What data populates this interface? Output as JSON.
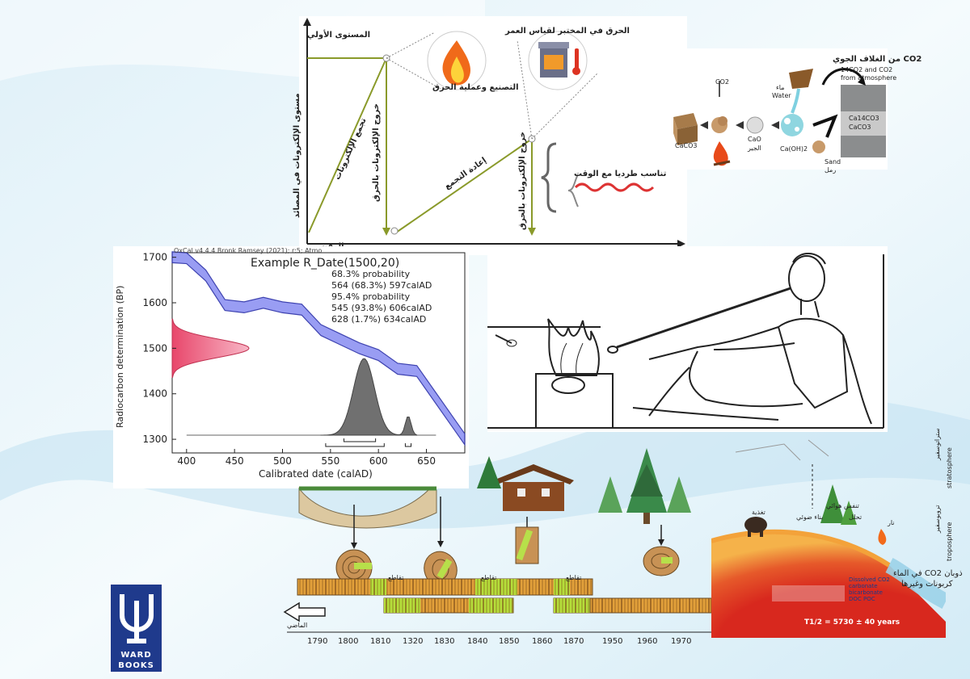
{
  "carbon_cycle": {
    "y_axis": "مستوى الإلكترونات في المصائد",
    "x_axis": "الوقت",
    "initial_level": "المستوى الأولي",
    "manufacture": "التصنيع وعملية الحرق",
    "lab_heating": "الحرق في المختبر لقياس العمر",
    "accumulation": "تجمع الإلكترونات",
    "release_heating": "خروج الإلكترونات بالحرق",
    "re_accumulation": "إعادة التجمع",
    "release_heating_2": "خروج الإلكترونات بالحرق",
    "proportional": "تناسب طرديا مع الوقت"
  },
  "lime_cycle": {
    "co2_title": "CO2 من الغلاف الجوي",
    "co2_sub_1": "14CO2 and CO2",
    "co2_sub_2": "from atmosphere",
    "co2_small": "CO2",
    "caco3": "CaCO3",
    "cao": "CaO",
    "cao_ar": "الجير",
    "water_ar": "ماء",
    "water": "Water",
    "caoh2": "Ca(OH)2",
    "sand": "Sand",
    "sand_ar": "رمل",
    "wall_1": "Ca14CO3",
    "wall_2": "CaCO3"
  },
  "oxcal": {
    "header": "OxCal v4.4.4 Bronk Ramsey (2021); r:5; Atmo",
    "title": "Example R_Date(1500,20)",
    "lines": [
      "68.3% probability",
      "564 (68.3%) 597calAD",
      "95.4% probability",
      "545 (93.8%) 606calAD",
      "628 (1.7%) 634calAD"
    ],
    "ylabel": "Radiocarbon determination (BP)",
    "xlabel": "Calibrated date (calAD)",
    "yticks": [
      "1700",
      "1600",
      "1500",
      "1400",
      "1300"
    ],
    "xticks": [
      "400",
      "450",
      "500",
      "550",
      "600",
      "650"
    ]
  },
  "chart_data": {
    "type": "area",
    "title": "Example R_Date(1500,20)",
    "xlabel": "Calibrated date (calAD)",
    "ylabel": "Radiocarbon determination (BP)",
    "xlim": [
      385,
      690
    ],
    "ylim": [
      1270,
      1710
    ],
    "calibration_curve": {
      "x": [
        385,
        400,
        420,
        440,
        460,
        480,
        500,
        520,
        540,
        560,
        580,
        600,
        620,
        640,
        660,
        680,
        690
      ],
      "y": [
        1700,
        1698,
        1660,
        1595,
        1590,
        1600,
        1590,
        1585,
        1540,
        1520,
        1500,
        1485,
        1455,
        1450,
        1390,
        1330,
        1300
      ]
    },
    "posterior_peak_calAD": 585,
    "intervals_68": [
      [
        564,
        597
      ]
    ],
    "intervals_95": [
      [
        545,
        606
      ],
      [
        628,
        634
      ]
    ],
    "measurement": {
      "mean": 1500,
      "sd": 20
    }
  },
  "dendro": {
    "intersection_labels": [
      "تقاطع",
      "تقاطع",
      "تقاطع"
    ],
    "past_label": "الماضي",
    "years": [
      "1790",
      "1800",
      "1810",
      "1320",
      "1830",
      "1840",
      "1850",
      "1860",
      "1870",
      "1950",
      "1960",
      "1970"
    ]
  },
  "atmosphere": {
    "stratosphere": "ستراتوسفير",
    "stratosphere_en": "stratosphere",
    "troposphere": "تروبوسفير",
    "troposphere_en": "troposphere",
    "feed": "تغذية",
    "decay": "تحلل",
    "fire": "نار",
    "photosynthesis": "بناء ضوئي",
    "respiration": "تنفس هوائي",
    "dissolved_ar": "ذوبان CO2 في الماء",
    "dissolved_ar_2": "كربونات وغيرها",
    "dissolved_list": "Dissolved CO2 carbonate bicarbonate DOC POC",
    "half_life": "T1/2 = 5730 ± 40 years"
  },
  "logo": {
    "top": "WARD",
    "bottom": "BOOKS"
  }
}
